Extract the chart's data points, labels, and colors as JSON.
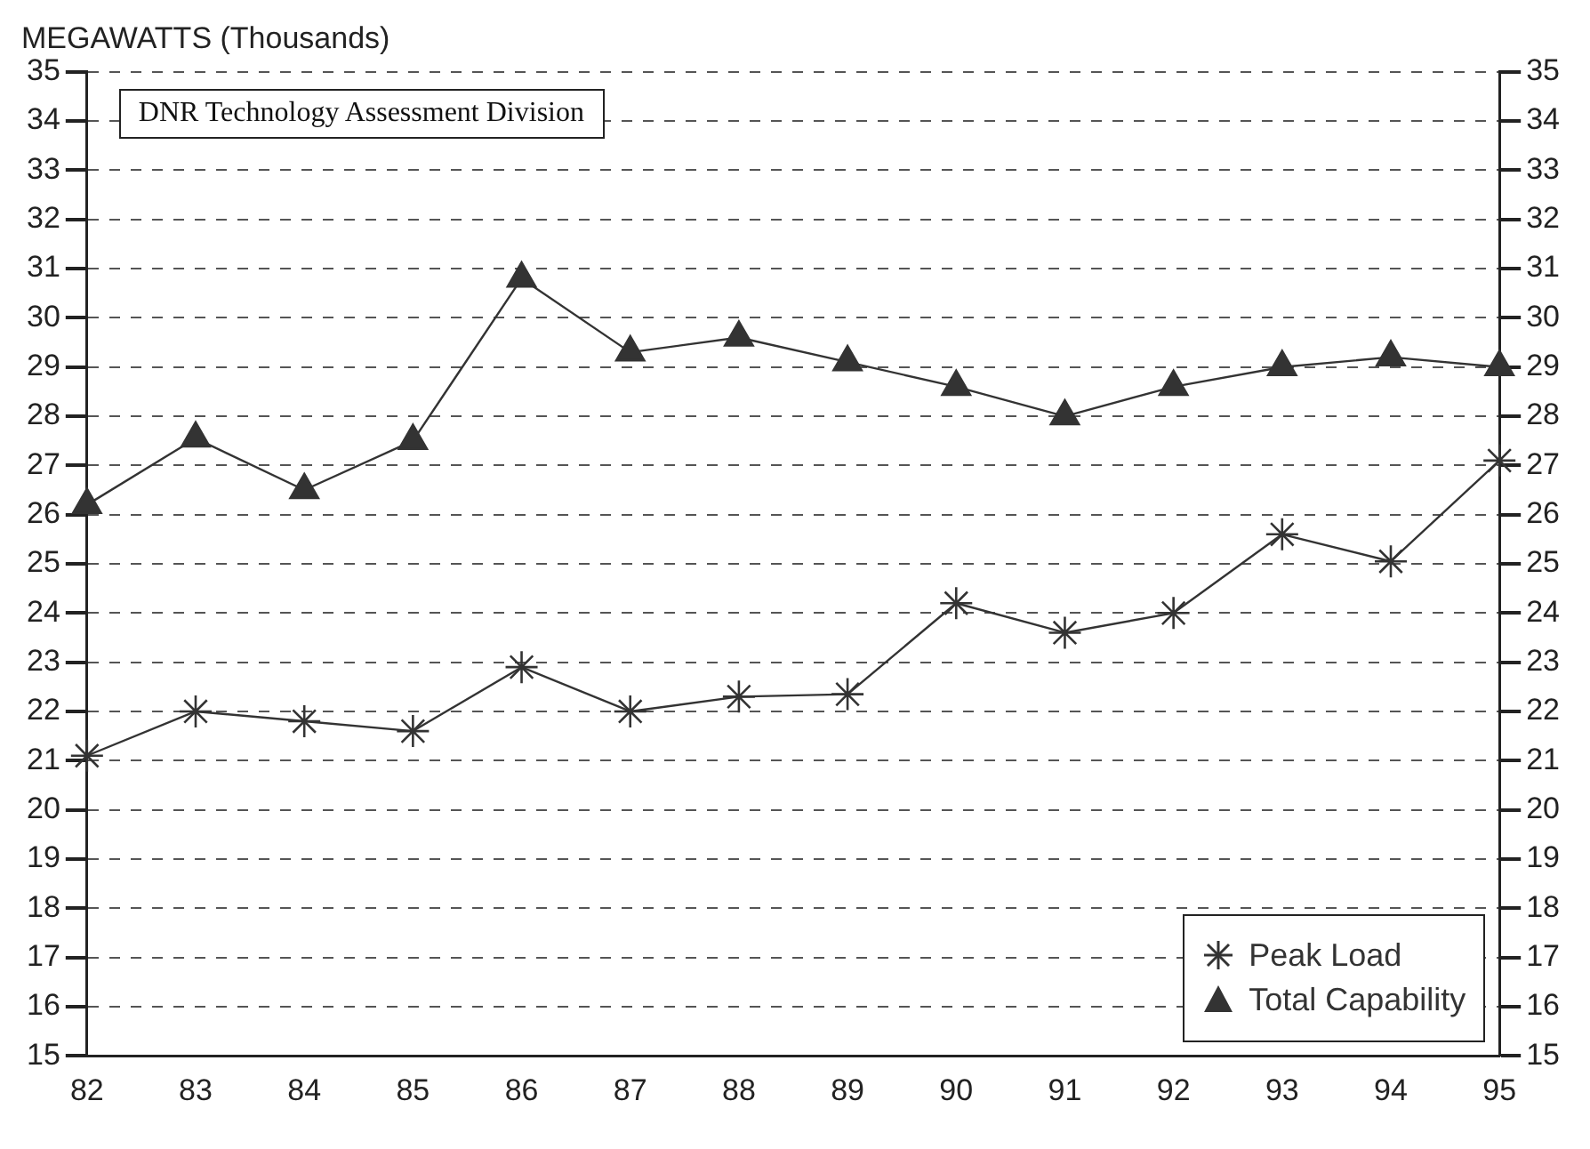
{
  "chart_data": {
    "type": "line",
    "ylabel": "MEGAWATTS (Thousands)",
    "annotations": [
      "DNR Technology Assessment Division"
    ],
    "categories": [
      "82",
      "83",
      "84",
      "85",
      "86",
      "87",
      "88",
      "89",
      "90",
      "91",
      "92",
      "93",
      "94",
      "95"
    ],
    "series": [
      {
        "name": "Peak Load",
        "color": "#333333",
        "marker": "cross",
        "values": [
          21.1,
          22.0,
          21.8,
          21.6,
          22.9,
          22.0,
          22.3,
          22.35,
          24.2,
          23.6,
          24.0,
          25.6,
          25.05,
          27.1
        ]
      },
      {
        "name": "Total Capability",
        "color": "#333333",
        "marker": "triangle",
        "values": [
          26.2,
          27.55,
          26.5,
          27.5,
          30.8,
          29.3,
          29.6,
          29.1,
          28.6,
          28.0,
          28.6,
          29.0,
          29.2,
          29.0
        ]
      }
    ],
    "ylim": [
      15,
      35
    ],
    "yticks": [
      15,
      16,
      17,
      18,
      19,
      20,
      21,
      22,
      23,
      24,
      25,
      26,
      27,
      28,
      29,
      30,
      31,
      32,
      33,
      34,
      35
    ],
    "y2lim": [
      15,
      35
    ],
    "y2ticks": [
      15,
      16,
      17,
      18,
      19,
      20,
      21,
      22,
      23,
      24,
      25,
      26,
      27,
      28,
      29,
      30,
      31,
      32,
      33,
      34,
      35
    ],
    "grid": "y",
    "legend": "bottom right",
    "line_style": "solid"
  }
}
